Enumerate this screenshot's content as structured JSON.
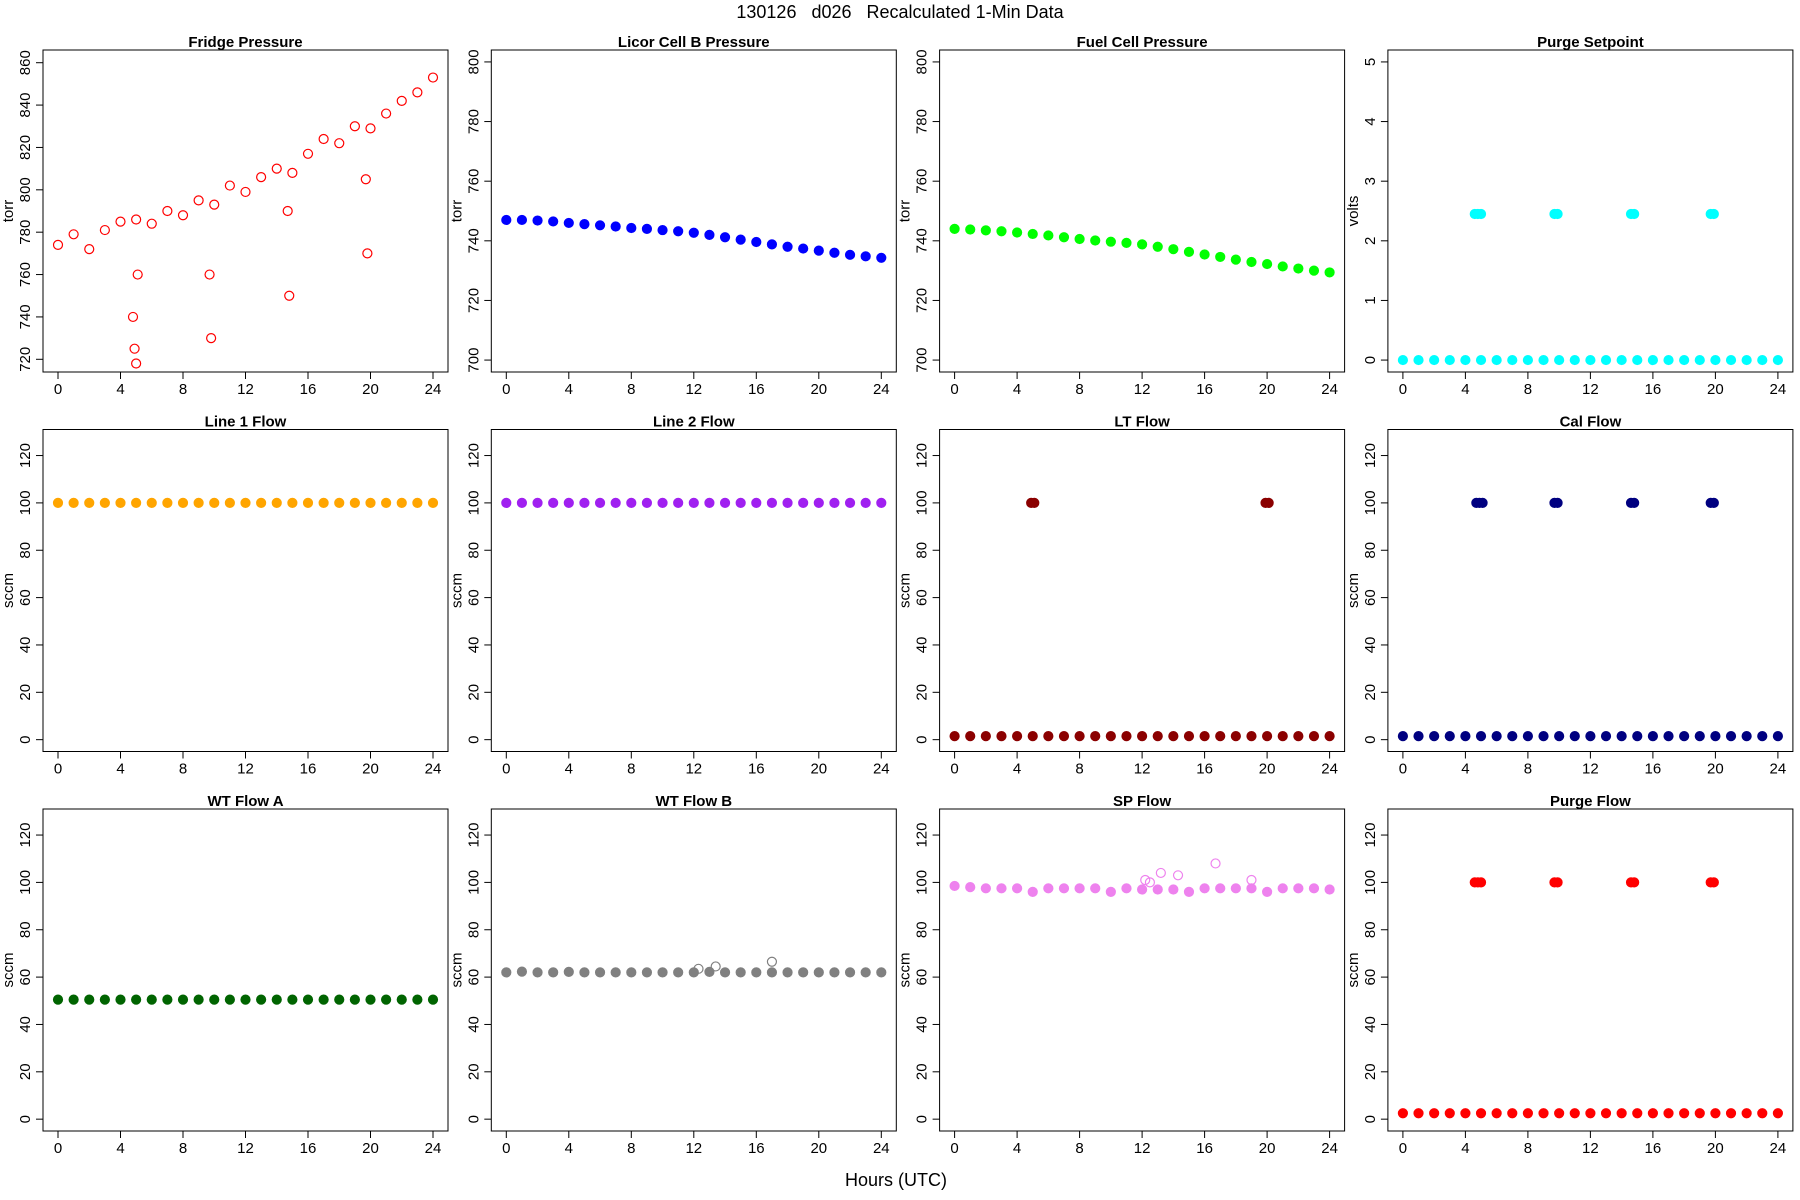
{
  "title": "130126   d026   Recalculated 1-Min Data",
  "xlabel": "Hours (UTC)",
  "chart_data": [
    {
      "type": "scatter",
      "title": "Fridge Pressure",
      "ylabel": "torr",
      "xlim": [
        -0.96,
        24.96
      ],
      "ylim": [
        714,
        866
      ],
      "xticks": [
        0,
        4,
        8,
        12,
        16,
        20,
        24
      ],
      "yticks": [
        720,
        740,
        760,
        780,
        800,
        820,
        840,
        860
      ],
      "series": [
        {
          "color": "#ff0000",
          "filled": false,
          "x": [
            0,
            1,
            2,
            3,
            4,
            5,
            6,
            7,
            8,
            9,
            10,
            11,
            12,
            13,
            14,
            15,
            16,
            17,
            18,
            19,
            20,
            21,
            22,
            23,
            24
          ],
          "values": [
            774,
            779,
            772,
            781,
            785,
            786,
            784,
            790,
            788,
            795,
            793,
            802,
            799,
            806,
            810,
            808,
            817,
            824,
            822,
            830,
            829,
            836,
            842,
            846,
            853
          ]
        },
        {
          "color": "#ff0000",
          "filled": false,
          "x": [
            4.8,
            4.9,
            5.0,
            5.1,
            9.7,
            9.8,
            14.7,
            14.8,
            19.7,
            19.8
          ],
          "values": [
            740,
            725,
            718,
            760,
            760,
            730,
            790,
            750,
            805,
            770
          ]
        }
      ]
    },
    {
      "type": "scatter",
      "title": "Licor Cell B Pressure",
      "ylabel": "torr",
      "xlim": [
        -0.96,
        24.96
      ],
      "ylim": [
        696,
        804
      ],
      "xticks": [
        0,
        4,
        8,
        12,
        16,
        20,
        24
      ],
      "yticks": [
        700,
        720,
        740,
        760,
        780,
        800
      ],
      "series": [
        {
          "color": "#0000ff",
          "filled": true,
          "x": [
            0,
            1,
            2,
            3,
            4,
            5,
            6,
            7,
            8,
            9,
            10,
            11,
            12,
            13,
            14,
            15,
            16,
            17,
            18,
            19,
            20,
            21,
            22,
            23,
            24
          ],
          "values": [
            747,
            747,
            746.8,
            746.5,
            746,
            745.6,
            745.2,
            744.8,
            744.3,
            744,
            743.6,
            743.2,
            742.7,
            742,
            741.2,
            740.4,
            739.6,
            738.8,
            738,
            737.4,
            736.7,
            736,
            735.3,
            734.8,
            734.3
          ]
        }
      ]
    },
    {
      "type": "scatter",
      "title": "Fuel Cell Pressure",
      "ylabel": "torr",
      "xlim": [
        -0.96,
        24.96
      ],
      "ylim": [
        696,
        804
      ],
      "xticks": [
        0,
        4,
        8,
        12,
        16,
        20,
        24
      ],
      "yticks": [
        700,
        720,
        740,
        760,
        780,
        800
      ],
      "series": [
        {
          "color": "#00ff00",
          "filled": true,
          "x": [
            0,
            1,
            2,
            3,
            4,
            5,
            6,
            7,
            8,
            9,
            10,
            11,
            12,
            13,
            14,
            15,
            16,
            17,
            18,
            19,
            20,
            21,
            22,
            23,
            24
          ],
          "values": [
            744,
            743.8,
            743.5,
            743.2,
            742.8,
            742.3,
            741.8,
            741.2,
            740.6,
            740.1,
            739.7,
            739.3,
            738.8,
            738,
            737.2,
            736.3,
            735.4,
            734.6,
            733.7,
            732.9,
            732.2,
            731.4,
            730.7,
            730,
            729.4
          ]
        }
      ]
    },
    {
      "type": "scatter",
      "title": "Purge Setpoint",
      "ylabel": "volts",
      "xlim": [
        -0.96,
        24.96
      ],
      "ylim": [
        -0.2,
        5.2
      ],
      "xticks": [
        0,
        4,
        8,
        12,
        16,
        20,
        24
      ],
      "yticks": [
        0,
        1,
        2,
        3,
        4,
        5
      ],
      "series": [
        {
          "color": "#00ffff",
          "filled": true,
          "x": [
            0,
            1,
            2,
            3,
            4,
            5,
            6,
            7,
            8,
            9,
            10,
            11,
            12,
            13,
            14,
            15,
            16,
            17,
            18,
            19,
            20,
            21,
            22,
            23,
            24
          ],
          "values": [
            0,
            0,
            0,
            0,
            0,
            0,
            0,
            0,
            0,
            0,
            0,
            0,
            0,
            0,
            0,
            0,
            0,
            0,
            0,
            0,
            0,
            0,
            0,
            0,
            0
          ]
        },
        {
          "color": "#00ffff",
          "filled": true,
          "x": [
            4.6,
            4.8,
            5.0,
            9.7,
            9.9,
            14.6,
            14.8,
            19.7,
            19.9
          ],
          "values": [
            2.45,
            2.45,
            2.45,
            2.45,
            2.45,
            2.45,
            2.45,
            2.45,
            2.45
          ]
        }
      ]
    },
    {
      "type": "scatter",
      "title": "Line 1 Flow",
      "ylabel": "sccm",
      "xlim": [
        -0.96,
        24.96
      ],
      "ylim": [
        -5,
        131
      ],
      "xticks": [
        0,
        4,
        8,
        12,
        16,
        20,
        24
      ],
      "yticks": [
        0,
        20,
        40,
        60,
        80,
        100,
        120
      ],
      "series": [
        {
          "color": "#ffa500",
          "filled": true,
          "x": [
            0,
            1,
            2,
            3,
            4,
            5,
            6,
            7,
            8,
            9,
            10,
            11,
            12,
            13,
            14,
            15,
            16,
            17,
            18,
            19,
            20,
            21,
            22,
            23,
            24
          ],
          "values": [
            100,
            100,
            100,
            100,
            100,
            100,
            100,
            100,
            100,
            100,
            100,
            100,
            100,
            100,
            100,
            100,
            100,
            100,
            100,
            100,
            100,
            100,
            100,
            100,
            100
          ]
        }
      ]
    },
    {
      "type": "scatter",
      "title": "Line 2 Flow",
      "ylabel": "sccm",
      "xlim": [
        -0.96,
        24.96
      ],
      "ylim": [
        -5,
        131
      ],
      "xticks": [
        0,
        4,
        8,
        12,
        16,
        20,
        24
      ],
      "yticks": [
        0,
        20,
        40,
        60,
        80,
        100,
        120
      ],
      "series": [
        {
          "color": "#a020f0",
          "filled": true,
          "x": [
            0,
            1,
            2,
            3,
            4,
            5,
            6,
            7,
            8,
            9,
            10,
            11,
            12,
            13,
            14,
            15,
            16,
            17,
            18,
            19,
            20,
            21,
            22,
            23,
            24
          ],
          "values": [
            100,
            100,
            100,
            100,
            100,
            100,
            100,
            100,
            100,
            100,
            100,
            100,
            100,
            100,
            100,
            100,
            100,
            100,
            100,
            100,
            100,
            100,
            100,
            100,
            100
          ]
        }
      ]
    },
    {
      "type": "scatter",
      "title": "LT Flow",
      "ylabel": "sccm",
      "xlim": [
        -0.96,
        24.96
      ],
      "ylim": [
        -5,
        131
      ],
      "xticks": [
        0,
        4,
        8,
        12,
        16,
        20,
        24
      ],
      "yticks": [
        0,
        20,
        40,
        60,
        80,
        100,
        120
      ],
      "series": [
        {
          "color": "#8b0000",
          "filled": true,
          "x": [
            0,
            1,
            2,
            3,
            4,
            5,
            6,
            7,
            8,
            9,
            10,
            11,
            12,
            13,
            14,
            15,
            16,
            17,
            18,
            19,
            20,
            21,
            22,
            23,
            24
          ],
          "values": [
            1.5,
            1.5,
            1.5,
            1.5,
            1.5,
            1.5,
            1.5,
            1.5,
            1.5,
            1.5,
            1.5,
            1.5,
            1.5,
            1.5,
            1.5,
            1.5,
            1.5,
            1.5,
            1.5,
            1.5,
            1.5,
            1.5,
            1.5,
            1.5,
            1.5
          ]
        },
        {
          "color": "#8b0000",
          "filled": true,
          "x": [
            4.9,
            5.1,
            19.9,
            20.1
          ],
          "values": [
            100,
            100,
            100,
            100
          ]
        }
      ]
    },
    {
      "type": "scatter",
      "title": "Cal Flow",
      "ylabel": "sccm",
      "xlim": [
        -0.96,
        24.96
      ],
      "ylim": [
        -5,
        131
      ],
      "xticks": [
        0,
        4,
        8,
        12,
        16,
        20,
        24
      ],
      "yticks": [
        0,
        20,
        40,
        60,
        80,
        100,
        120
      ],
      "series": [
        {
          "color": "#000080",
          "filled": true,
          "x": [
            0,
            1,
            2,
            3,
            4,
            5,
            6,
            7,
            8,
            9,
            10,
            11,
            12,
            13,
            14,
            15,
            16,
            17,
            18,
            19,
            20,
            21,
            22,
            23,
            24
          ],
          "values": [
            1.5,
            1.5,
            1.5,
            1.5,
            1.5,
            1.5,
            1.5,
            1.5,
            1.5,
            1.5,
            1.5,
            1.5,
            1.5,
            1.5,
            1.5,
            1.5,
            1.5,
            1.5,
            1.5,
            1.5,
            1.5,
            1.5,
            1.5,
            1.5,
            1.5
          ]
        },
        {
          "color": "#000080",
          "filled": true,
          "x": [
            4.7,
            4.9,
            5.1,
            9.7,
            9.9,
            14.6,
            14.8,
            19.7,
            19.9
          ],
          "values": [
            100,
            100,
            100,
            100,
            100,
            100,
            100,
            100,
            100
          ]
        }
      ]
    },
    {
      "type": "scatter",
      "title": "WT Flow A",
      "ylabel": "sccm",
      "xlim": [
        -0.96,
        24.96
      ],
      "ylim": [
        -5,
        131
      ],
      "xticks": [
        0,
        4,
        8,
        12,
        16,
        20,
        24
      ],
      "yticks": [
        0,
        20,
        40,
        60,
        80,
        100,
        120
      ],
      "series": [
        {
          "color": "#006400",
          "filled": true,
          "x": [
            0,
            1,
            2,
            3,
            4,
            5,
            6,
            7,
            8,
            9,
            10,
            11,
            12,
            13,
            14,
            15,
            16,
            17,
            18,
            19,
            20,
            21,
            22,
            23,
            24
          ],
          "values": [
            50.5,
            50.5,
            50.5,
            50.5,
            50.5,
            50.5,
            50.5,
            50.5,
            50.5,
            50.5,
            50.5,
            50.5,
            50.5,
            50.5,
            50.5,
            50.5,
            50.5,
            50.5,
            50.5,
            50.5,
            50.5,
            50.5,
            50.5,
            50.5,
            50.5
          ]
        }
      ]
    },
    {
      "type": "scatter",
      "title": "WT Flow B",
      "ylabel": "sccm",
      "xlim": [
        -0.96,
        24.96
      ],
      "ylim": [
        -5,
        131
      ],
      "xticks": [
        0,
        4,
        8,
        12,
        16,
        20,
        24
      ],
      "yticks": [
        0,
        20,
        40,
        60,
        80,
        100,
        120
      ],
      "series": [
        {
          "color": "#808080",
          "filled": true,
          "x": [
            0,
            1,
            2,
            3,
            4,
            5,
            6,
            7,
            8,
            9,
            10,
            11,
            12,
            13,
            14,
            15,
            16,
            17,
            18,
            19,
            20,
            21,
            22,
            23,
            24
          ],
          "values": [
            62,
            62.3,
            62,
            62,
            62.2,
            62,
            62,
            62,
            62,
            62,
            62,
            62,
            62,
            62.2,
            62,
            62,
            62,
            62,
            62,
            62,
            62,
            62,
            62,
            62,
            62
          ]
        },
        {
          "color": "#808080",
          "filled": false,
          "x": [
            12.3,
            13.4,
            17.0
          ],
          "values": [
            63.5,
            64.5,
            66.5
          ]
        }
      ]
    },
    {
      "type": "scatter",
      "title": "SP Flow",
      "ylabel": "sccm",
      "xlim": [
        -0.96,
        24.96
      ],
      "ylim": [
        -5,
        131
      ],
      "xticks": [
        0,
        4,
        8,
        12,
        16,
        20,
        24
      ],
      "yticks": [
        0,
        20,
        40,
        60,
        80,
        100,
        120
      ],
      "series": [
        {
          "color": "#ee82ee",
          "filled": true,
          "x": [
            0,
            1,
            2,
            3,
            4,
            5,
            6,
            7,
            8,
            9,
            10,
            11,
            12,
            13,
            14,
            15,
            16,
            17,
            18,
            19,
            20,
            21,
            22,
            23,
            24
          ],
          "values": [
            98.5,
            98,
            97.5,
            97.5,
            97.5,
            96,
            97.5,
            97.5,
            97.5,
            97.5,
            96,
            97.5,
            97,
            97,
            97,
            96,
            97.5,
            97.5,
            97.5,
            97.5,
            96,
            97.5,
            97.5,
            97.5,
            97
          ]
        },
        {
          "color": "#ee82ee",
          "filled": false,
          "x": [
            12.2,
            12.5,
            13.2,
            14.3,
            16.7,
            19.0
          ],
          "values": [
            101,
            100,
            104,
            103,
            108,
            101
          ]
        }
      ]
    },
    {
      "type": "scatter",
      "title": "Purge Flow",
      "ylabel": "sccm",
      "xlim": [
        -0.96,
        24.96
      ],
      "ylim": [
        -5,
        131
      ],
      "xticks": [
        0,
        4,
        8,
        12,
        16,
        20,
        24
      ],
      "yticks": [
        0,
        20,
        40,
        60,
        80,
        100,
        120
      ],
      "series": [
        {
          "color": "#ff0000",
          "filled": true,
          "x": [
            0,
            1,
            2,
            3,
            4,
            5,
            6,
            7,
            8,
            9,
            10,
            11,
            12,
            13,
            14,
            15,
            16,
            17,
            18,
            19,
            20,
            21,
            22,
            23,
            24
          ],
          "values": [
            2.5,
            2.5,
            2.5,
            2.5,
            2.5,
            2.5,
            2.5,
            2.5,
            2.5,
            2.5,
            2.5,
            2.5,
            2.5,
            2.5,
            2.5,
            2.5,
            2.5,
            2.5,
            2.5,
            2.5,
            2.5,
            2.5,
            2.5,
            2.5,
            2.5
          ]
        },
        {
          "color": "#ff0000",
          "filled": true,
          "x": [
            4.6,
            4.8,
            5.0,
            9.7,
            9.9,
            14.6,
            14.8,
            19.7,
            19.9
          ],
          "values": [
            100,
            100,
            100,
            100,
            100,
            100,
            100,
            100,
            100
          ]
        }
      ]
    }
  ]
}
